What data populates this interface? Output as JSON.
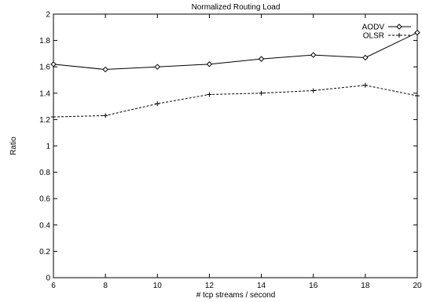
{
  "chart_data": {
    "type": "line",
    "title": "Normalized Routing Load",
    "xlabel": "# tcp streams / second",
    "ylabel": "Ratio",
    "xlim": [
      6,
      20
    ],
    "ylim": [
      0,
      2
    ],
    "xticks": [
      6,
      8,
      10,
      12,
      14,
      16,
      18,
      20
    ],
    "yticks": [
      0,
      0.2,
      0.4,
      0.6,
      0.8,
      1,
      1.2,
      1.4,
      1.6,
      1.8,
      2
    ],
    "grid": false,
    "legend_position": "top-right",
    "series": [
      {
        "name": "AODV",
        "marker": "diamond",
        "line_style": "solid",
        "color": "#000000",
        "x": [
          6,
          8,
          10,
          12,
          14,
          16,
          18,
          20
        ],
        "y": [
          1.62,
          1.58,
          1.6,
          1.62,
          1.66,
          1.69,
          1.67,
          1.86
        ]
      },
      {
        "name": "OLSR",
        "marker": "plus",
        "line_style": "dashed",
        "color": "#000000",
        "x": [
          6,
          8,
          10,
          12,
          14,
          16,
          18,
          20
        ],
        "y": [
          1.22,
          1.23,
          1.32,
          1.39,
          1.4,
          1.42,
          1.46,
          1.38
        ]
      }
    ]
  }
}
